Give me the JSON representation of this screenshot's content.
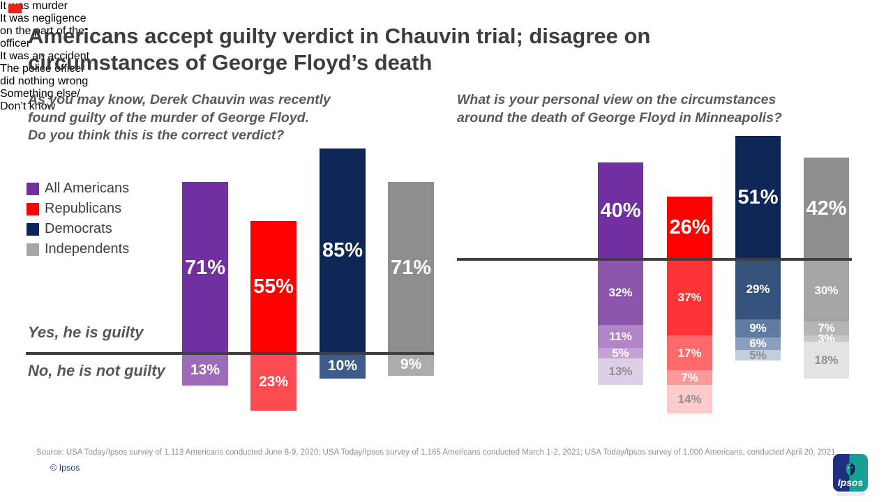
{
  "accent": {
    "color": "#E8231B"
  },
  "title_lines": [
    "Americans accept guilty verdict in Chauvin trial; disagree on",
    "circumstances of George Floyd’s death"
  ],
  "footer": {
    "source": "Source: USA Today/Ipsos survey of 1,113 Americans conducted June 8-9, 2020; USA Today/Ipsos survey of 1,165 Americans conducted March 1-2, 2021; USA Today/Ipsos survey of 1,000 Americans, conducted April 20, 2021",
    "copyright": "© Ipsos",
    "logo_text": "Ipsos",
    "logo_blue": "#1D2F83",
    "logo_teal": "#17A093"
  },
  "chart_data": [
    {
      "type": "bar",
      "question_lines": [
        "As you may know, Derek Chauvin was recently",
        "found guilty of the murder of George Floyd.",
        "Do you think this is the correct verdict?"
      ],
      "above_axis_label": "Yes, he is guilty",
      "below_axis_label": "No, he is not guilty",
      "axis": "diverging zero line, values in percent",
      "groups": [
        {
          "name": "All Americans",
          "color": "#7030A0",
          "below_color": "#9E6BB8",
          "swatch": "#7030A0",
          "above": 71,
          "below": 13
        },
        {
          "name": "Republicans",
          "color": "#FE0000",
          "below_color": "#FD4B51",
          "swatch": "#FE0000",
          "above": 55,
          "below": 23
        },
        {
          "name": "Democrats",
          "color": "#0E2655",
          "below_color": "#3E5C8A",
          "swatch": "#0B2559",
          "above": 85,
          "below": 10
        },
        {
          "name": "Independents",
          "color": "#8E8E8E",
          "below_color": "#ACACAC",
          "swatch": "#A6A6A6",
          "above": 71,
          "below": 9
        }
      ]
    },
    {
      "type": "stacked-diverging-bar",
      "question_lines": [
        "What is your personal view on the circumstances",
        "around the death of George Floyd in Minneapolis?"
      ],
      "groups": [
        "All Americans",
        "Republicans",
        "Democrats",
        "Independents"
      ],
      "categories": [
        {
          "lines": [
            "It was murder"
          ],
          "swatch": "#000000",
          "bold": true
        },
        {
          "lines": [
            "It was negligence",
            "on the part of the",
            "officer"
          ],
          "swatch": "#3F3F3F",
          "bold": false
        },
        {
          "lines": [
            "It was an accident"
          ],
          "swatch": "#595959",
          "bold": false
        },
        {
          "lines": [
            "The police officer",
            "did nothing wrong"
          ],
          "swatch": "#9A9A9A",
          "bold": false
        },
        {
          "lines": [
            "Something else/",
            "Don’t know"
          ],
          "swatch": "#D9D9D9",
          "bold": false
        }
      ],
      "series": [
        {
          "name": "It was murder",
          "values": [
            40,
            26,
            51,
            42
          ]
        },
        {
          "name": "It was negligence on the part of the officer",
          "values": [
            32,
            37,
            29,
            30
          ]
        },
        {
          "name": "It was an accident",
          "values": [
            11,
            17,
            9,
            7
          ]
        },
        {
          "name": "The police officer did nothing wrong",
          "values": [
            5,
            7,
            6,
            3
          ]
        },
        {
          "name": "Something else/ Don’t know",
          "values": [
            13,
            14,
            5,
            18
          ]
        }
      ],
      "group_palettes": [
        [
          "#7030A0",
          "#8E55AC",
          "#B183C7",
          "#C4A2D4",
          "#DECFE9"
        ],
        [
          "#FE0000",
          "#FE3336",
          "#FE6A6C",
          "#FE999A",
          "#FECBCC"
        ],
        [
          "#0E2655",
          "#35527C",
          "#5F7BA4",
          "#8BA0BF",
          "#C2CEDE"
        ],
        [
          "#8E8E8E",
          "#A5A5A5",
          "#B4B4B4",
          "#C7C7C7",
          "#E3E3E3"
        ]
      ],
      "muted_label_color": "#8F8F8F"
    }
  ]
}
